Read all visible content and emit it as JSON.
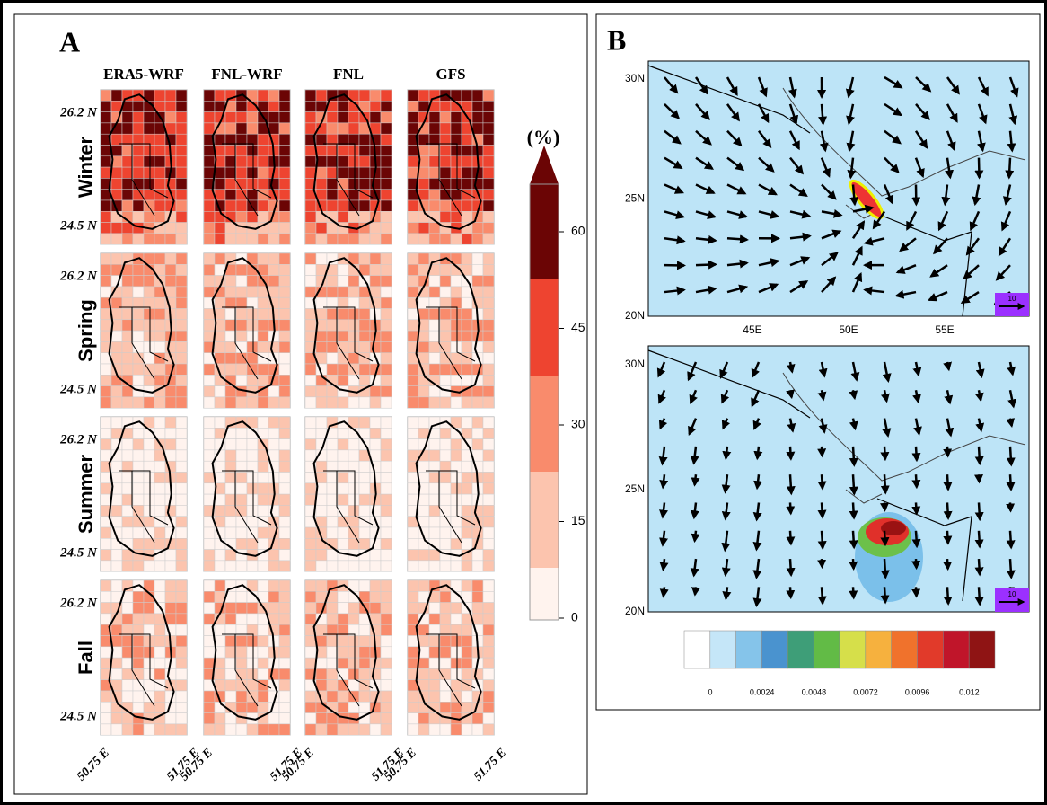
{
  "panel_a": {
    "label": "A",
    "columns": [
      "ERA5-WRF",
      "FNL-WRF",
      "FNL",
      "GFS"
    ],
    "rows": [
      "Winter",
      "Spring",
      "Summer",
      "Fall"
    ],
    "lat_labels": [
      "26.2 N",
      "24.5 N"
    ],
    "lon_labels": [
      "50.75 E",
      "51.75 E"
    ],
    "colorbar": {
      "title": "(%)",
      "ticks": [
        0,
        15,
        30,
        45,
        60
      ]
    }
  },
  "panel_b": {
    "label": "B",
    "top": {
      "lat_labels": [
        "30N",
        "25N",
        "20N"
      ],
      "lon_labels": [
        "45E",
        "50E",
        "55E"
      ],
      "ref_vector": "10"
    },
    "bottom": {
      "lat_labels": [
        "30N",
        "25N",
        "20N"
      ],
      "ref_vector": "10"
    },
    "colorbar": {
      "ticks": [
        0,
        0.0024,
        0.0048,
        0.0072,
        0.0096,
        0.012
      ]
    }
  }
}
